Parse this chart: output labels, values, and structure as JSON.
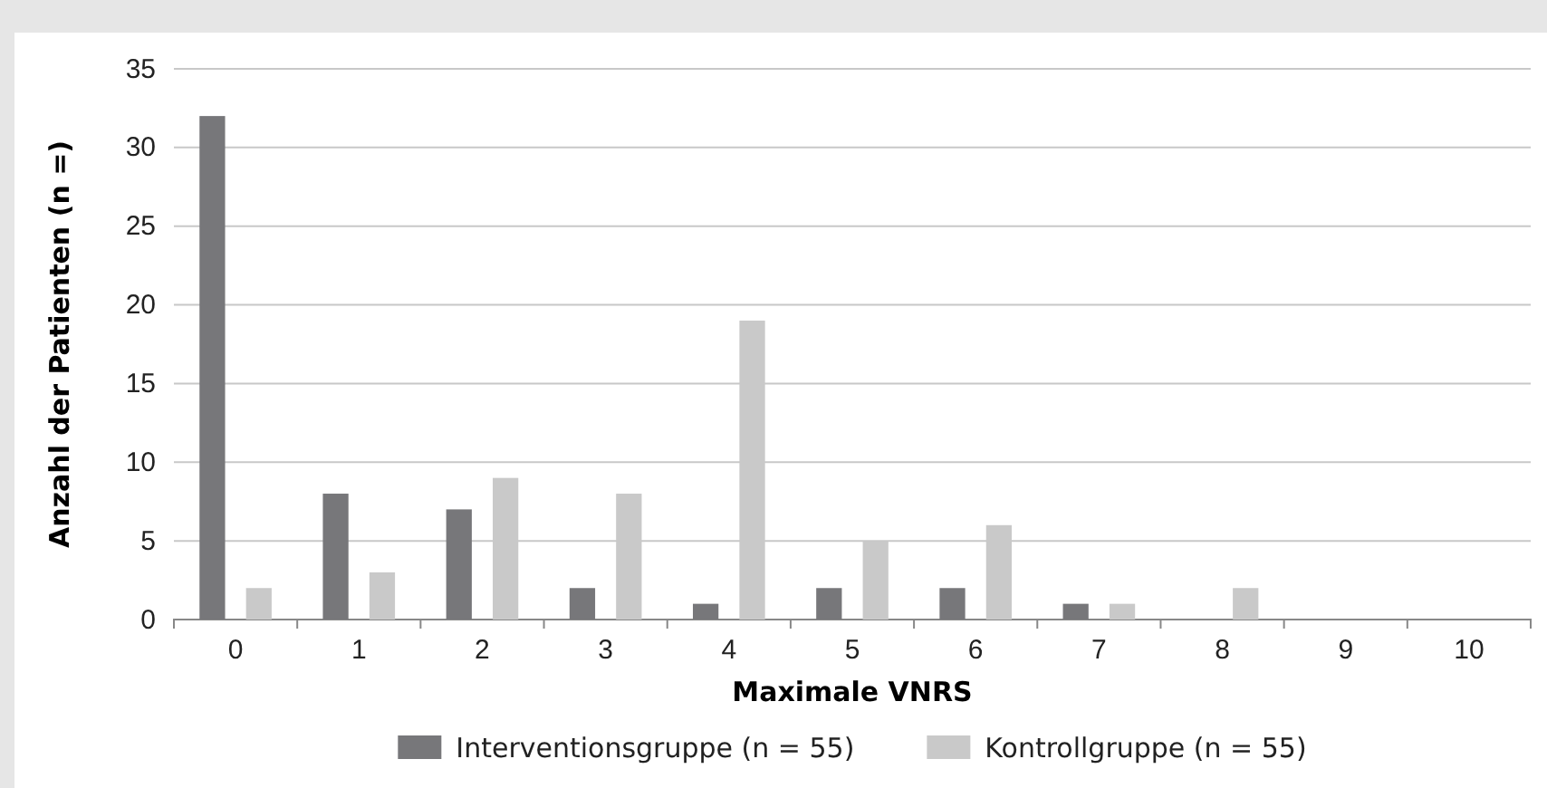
{
  "chart_data": {
    "type": "bar",
    "xlabel": "Maximale VNRS",
    "ylabel": "Anzahl der Patienten (n =)",
    "categories": [
      "0",
      "1",
      "2",
      "3",
      "4",
      "5",
      "6",
      "7",
      "8",
      "9",
      "10"
    ],
    "series": [
      {
        "name": "Interventionsgruppe (n = 55)",
        "color": "#77777a",
        "values": [
          32,
          8,
          7,
          2,
          1,
          2,
          2,
          1,
          0,
          0,
          0
        ]
      },
      {
        "name": "Kontrollgruppe (n = 55)",
        "color": "#c9c9c9",
        "values": [
          2,
          3,
          9,
          8,
          19,
          5,
          6,
          1,
          2,
          0,
          0
        ]
      }
    ],
    "ylim": [
      0,
      35
    ],
    "yticks": [
      0,
      5,
      10,
      15,
      20,
      25,
      30,
      35
    ],
    "grid": "y",
    "legend": "bottom"
  }
}
